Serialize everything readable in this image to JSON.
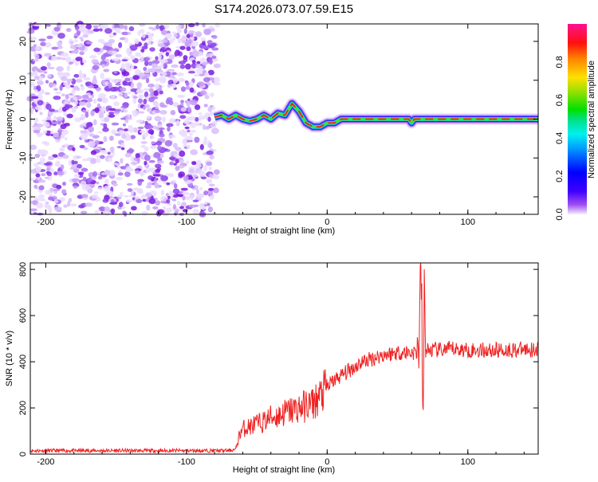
{
  "chart_data": [
    {
      "type": "heatmap",
      "title": "S174.2026.073.07.59.E15",
      "xlabel": "Height of straight line (km)",
      "ylabel": "Frequency (Hz)",
      "xlim": [
        -211,
        150
      ],
      "ylim": [
        -24.5,
        24.5
      ],
      "xticks": [
        -200,
        -100,
        0,
        100
      ],
      "yticks": [
        -20,
        -10,
        0,
        10,
        20
      ],
      "colorbar": {
        "label": "Normalized spectral amplitude",
        "ticks": [
          "0.0",
          "0.2",
          "0.4",
          "0.6",
          "0.8"
        ],
        "range": [
          0,
          1
        ]
      },
      "noise_region_x": [
        -211,
        -78
      ],
      "ridge": {
        "x": [
          -80,
          -75,
          -70,
          -65,
          -60,
          -55,
          -50,
          -45,
          -40,
          -35,
          -30,
          -25,
          -20,
          -15,
          -10,
          -5,
          0,
          5,
          10,
          20,
          40,
          55,
          58,
          60,
          62,
          65,
          70,
          100,
          150
        ],
        "freq": [
          0.5,
          1,
          0,
          1,
          0,
          -0.5,
          0,
          1,
          0,
          1.5,
          1,
          4,
          2,
          -1,
          -2,
          -2,
          -1,
          -1,
          0,
          0,
          0,
          0,
          0,
          -1,
          0,
          0,
          0,
          0,
          0
        ]
      }
    },
    {
      "type": "line",
      "xlabel": "Height of straight line (km)",
      "ylabel": "SNR (10 * v/v)",
      "xlim": [
        -211,
        150
      ],
      "ylim": [
        0,
        828
      ],
      "xticks": [
        -200,
        -100,
        0,
        100
      ],
      "yticks": [
        0,
        200,
        400,
        600,
        800
      ],
      "series": [
        {
          "name": "SNR",
          "color": "#ee2222",
          "x": [
            -211,
            -150,
            -100,
            -70,
            -65,
            -62,
            -60,
            -55,
            -50,
            -45,
            -40,
            -35,
            -30,
            -25,
            -20,
            -15,
            -10,
            -5,
            0,
            5,
            10,
            15,
            20,
            25,
            30,
            40,
            50,
            60,
            65,
            66,
            67,
            68,
            69,
            70,
            80,
            90,
            100,
            120,
            150
          ],
          "y": [
            15,
            15,
            15,
            15,
            20,
            90,
            110,
            120,
            130,
            140,
            160,
            165,
            180,
            190,
            200,
            210,
            220,
            250,
            290,
            320,
            340,
            360,
            380,
            400,
            410,
            430,
            440,
            440,
            440,
            650,
            800,
            60,
            700,
            450,
            450,
            455,
            450,
            450,
            455
          ]
        }
      ]
    }
  ]
}
